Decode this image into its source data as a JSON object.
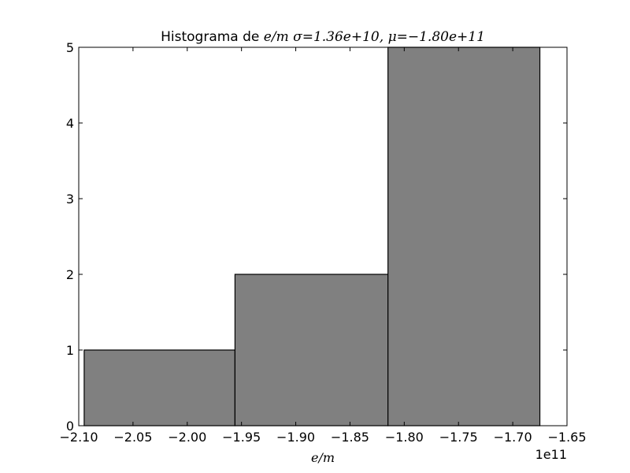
{
  "chart_data": {
    "type": "bar",
    "title": {
      "prefix": "Histograma de",
      "variable": "e/m",
      "sigma_text": "σ=1.36e+10,",
      "mu_text": "μ=−1.80e+11"
    },
    "xlabel": "e/m",
    "ylabel": "",
    "x_offset_label": "1e11",
    "xlim": [
      -2.1,
      -1.65
    ],
    "ylim": [
      0,
      5
    ],
    "x_tick_values": [
      -2.1,
      -2.05,
      -2.0,
      -1.95,
      -1.9,
      -1.85,
      -1.8,
      -1.75,
      -1.7,
      -1.65
    ],
    "x_tick_labels": [
      "−2.10",
      "−2.05",
      "−2.00",
      "−1.95",
      "−1.90",
      "−1.85",
      "−1.80",
      "−1.75",
      "−1.70",
      "−1.65"
    ],
    "y_tick_values": [
      0,
      1,
      2,
      3,
      4,
      5
    ],
    "y_tick_labels": [
      "0",
      "1",
      "2",
      "3",
      "4",
      "5"
    ],
    "bins": [
      {
        "x_start": -2.095,
        "x_end": -1.956,
        "count": 1
      },
      {
        "x_start": -1.956,
        "x_end": -1.815,
        "count": 2
      },
      {
        "x_start": -1.815,
        "x_end": -1.675,
        "count": 5
      }
    ],
    "bar_color": "#808080",
    "edge_color": "#000000",
    "grid": false
  }
}
